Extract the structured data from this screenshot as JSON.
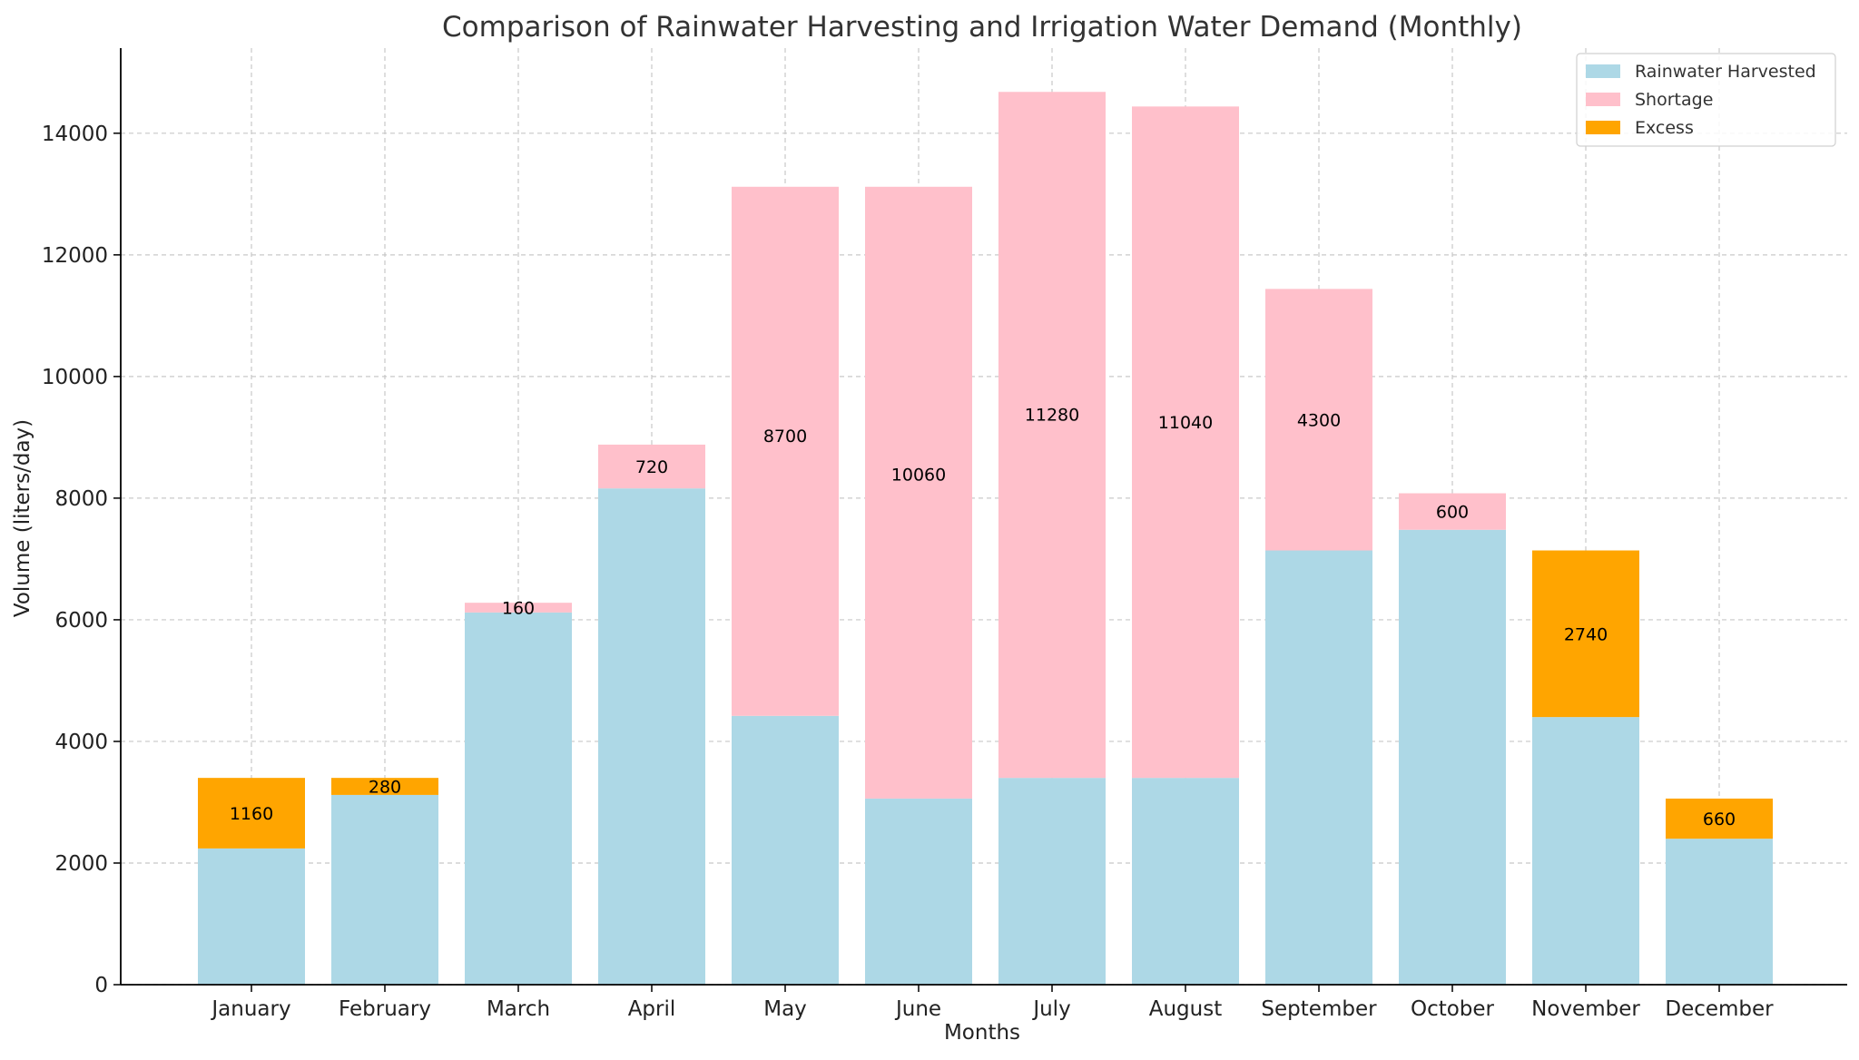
{
  "chart_data": {
    "type": "bar",
    "title": "Comparison of Rainwater Harvesting and Irrigation Water Demand (Monthly)",
    "xlabel": "Months",
    "ylabel": "Volume (liters/day)",
    "ylim": [
      0,
      15400
    ],
    "yticks": [
      0,
      2000,
      4000,
      6000,
      8000,
      10000,
      12000,
      14000
    ],
    "grid": true,
    "stacked": true,
    "legend_position": "top-right",
    "categories": [
      "January",
      "February",
      "March",
      "April",
      "May",
      "June",
      "July",
      "August",
      "September",
      "October",
      "November",
      "December"
    ],
    "series": [
      {
        "name": "Rainwater Harvested",
        "color": "#add8e6",
        "values": [
          2240,
          3120,
          6120,
          8160,
          4420,
          3060,
          3400,
          3400,
          7140,
          7480,
          4400,
          2400
        ]
      },
      {
        "name": "Shortage",
        "color": "#ffc0cb",
        "values": [
          0,
          0,
          160,
          720,
          8700,
          10060,
          11280,
          11040,
          4300,
          600,
          0,
          0
        ]
      },
      {
        "name": "Excess",
        "color": "#ffa500",
        "values": [
          1160,
          280,
          0,
          0,
          0,
          0,
          0,
          0,
          0,
          0,
          2740,
          660
        ]
      }
    ],
    "data_labels": [
      "1160",
      "280",
      "160",
      "720",
      "8700",
      "10060",
      "11280",
      "11040",
      "4300",
      "600",
      "2740",
      "660"
    ]
  }
}
